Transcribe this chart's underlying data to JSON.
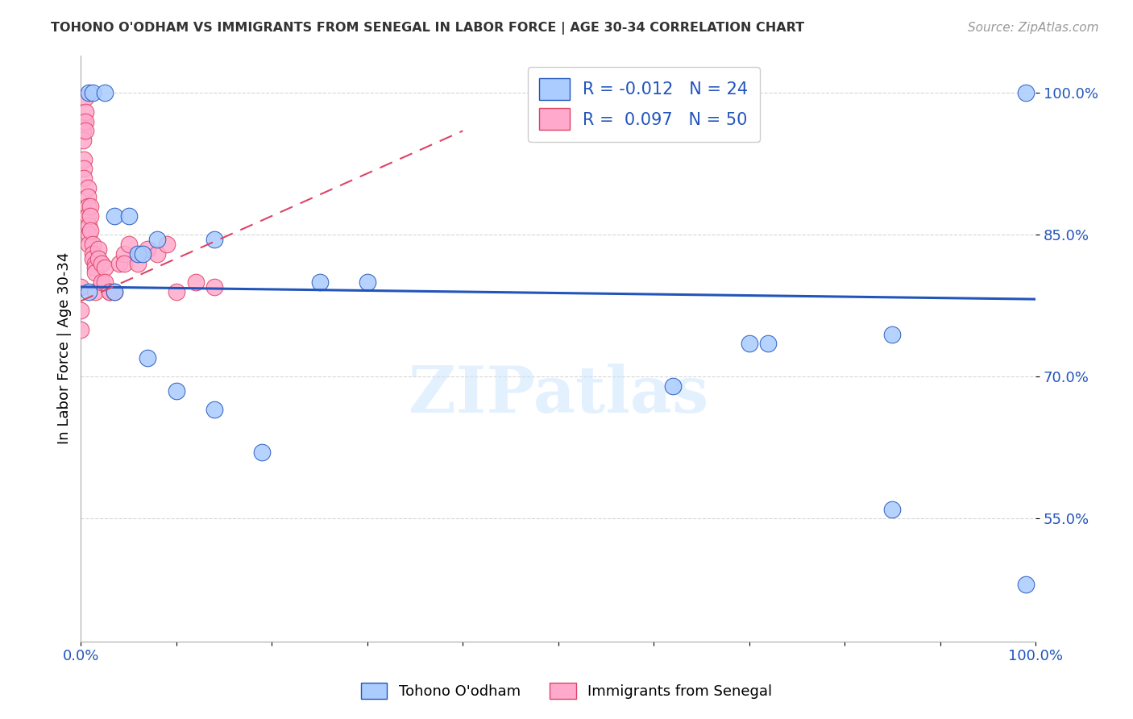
{
  "title": "TOHONO O'ODHAM VS IMMIGRANTS FROM SENEGAL IN LABOR FORCE | AGE 30-34 CORRELATION CHART",
  "source": "Source: ZipAtlas.com",
  "ylabel": "In Labor Force | Age 30-34",
  "xlim": [
    0.0,
    1.0
  ],
  "ylim": [
    0.42,
    1.04
  ],
  "blue_R": "-0.012",
  "blue_N": "24",
  "pink_R": "0.097",
  "pink_N": "50",
  "blue_color": "#aaccff",
  "pink_color": "#ffaacc",
  "trend_blue_color": "#2255bb",
  "trend_pink_color": "#dd4466",
  "yticks": [
    0.55,
    0.7,
    0.85,
    1.0
  ],
  "ytick_labels": [
    "55.0%",
    "70.0%",
    "85.0%",
    "100.0%"
  ],
  "xticks": [
    0.0,
    0.1,
    0.2,
    0.3,
    0.4,
    0.5,
    0.6,
    0.7,
    0.8,
    0.9,
    1.0
  ],
  "xtick_labels": [
    "0.0%",
    "",
    "",
    "",
    "",
    "",
    "",
    "",
    "",
    "",
    "100.0%"
  ],
  "blue_scatter_x": [
    0.008,
    0.012,
    0.025,
    0.035,
    0.05,
    0.06,
    0.065,
    0.08,
    0.14,
    0.25,
    0.3,
    0.62,
    0.7,
    0.85,
    0.99,
    0.008,
    0.035,
    0.07,
    0.1,
    0.14,
    0.19,
    0.72,
    0.85,
    0.99
  ],
  "blue_scatter_y": [
    1.0,
    1.0,
    1.0,
    0.87,
    0.87,
    0.83,
    0.83,
    0.845,
    0.845,
    0.8,
    0.8,
    0.69,
    0.735,
    0.745,
    1.0,
    0.79,
    0.79,
    0.72,
    0.685,
    0.665,
    0.62,
    0.735,
    0.56,
    0.48
  ],
  "pink_scatter_x": [
    0.0,
    0.0,
    0.0,
    0.002,
    0.002,
    0.002,
    0.003,
    0.003,
    0.003,
    0.005,
    0.005,
    0.005,
    0.005,
    0.007,
    0.007,
    0.007,
    0.007,
    0.008,
    0.008,
    0.008,
    0.01,
    0.01,
    0.01,
    0.012,
    0.012,
    0.012,
    0.015,
    0.015,
    0.015,
    0.015,
    0.018,
    0.018,
    0.022,
    0.022,
    0.025,
    0.025,
    0.03,
    0.03,
    0.035,
    0.04,
    0.045,
    0.045,
    0.05,
    0.06,
    0.07,
    0.08,
    0.09,
    0.1,
    0.12,
    0.14
  ],
  "pink_scatter_y": [
    0.795,
    0.77,
    0.75,
    0.97,
    0.96,
    0.95,
    0.93,
    0.92,
    0.91,
    0.995,
    0.98,
    0.97,
    0.96,
    0.9,
    0.89,
    0.88,
    0.87,
    0.86,
    0.85,
    0.84,
    0.88,
    0.87,
    0.855,
    0.84,
    0.83,
    0.825,
    0.82,
    0.815,
    0.81,
    0.79,
    0.835,
    0.825,
    0.82,
    0.8,
    0.815,
    0.8,
    0.79,
    0.79,
    0.79,
    0.82,
    0.83,
    0.82,
    0.84,
    0.82,
    0.835,
    0.83,
    0.84,
    0.79,
    0.8,
    0.795
  ],
  "blue_trend_x": [
    0.0,
    1.0
  ],
  "blue_trend_y": [
    0.795,
    0.782
  ],
  "pink_trend_x": [
    0.0,
    0.4
  ],
  "pink_trend_y": [
    0.78,
    0.96
  ],
  "watermark_text": "ZIPatlas",
  "background_color": "#ffffff",
  "grid_color": "#cccccc"
}
